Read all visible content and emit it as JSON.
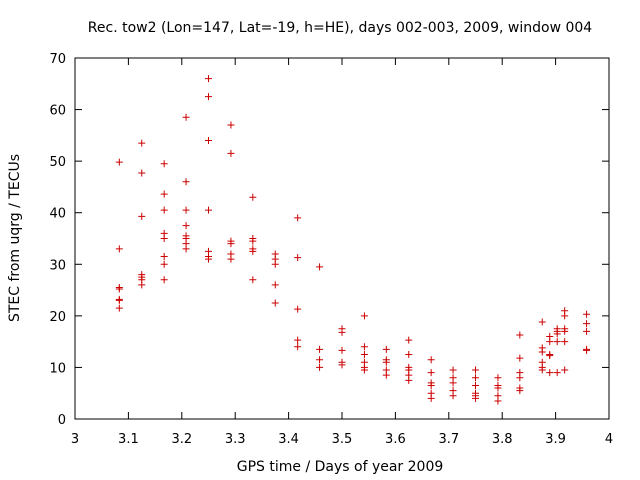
{
  "chart_data": {
    "type": "scatter",
    "title": "Rec. tow2 (Lon=147, Lat=-19, h=HE), days 002-003, 2009, window 004",
    "xlabel": "GPS time / Days of year 2009",
    "ylabel": "STEC from uqrg / TECUs",
    "xlim": [
      3,
      4
    ],
    "ylim": [
      0,
      70
    ],
    "xticks": [
      "3",
      "3.1",
      "3.2",
      "3.3",
      "3.4",
      "3.5",
      "3.6",
      "3.7",
      "3.8",
      "3.9",
      "4"
    ],
    "yticks": [
      "0",
      "10",
      "20",
      "30",
      "40",
      "50",
      "60",
      "70"
    ],
    "grid": false,
    "legend": "none",
    "marker": "+",
    "color": "#cc0000",
    "series": [
      {
        "name": "STEC",
        "points": [
          [
            3.083,
            49.8
          ],
          [
            3.083,
            33.0
          ],
          [
            3.083,
            25.5
          ],
          [
            3.083,
            25.2
          ],
          [
            3.083,
            23.2
          ],
          [
            3.083,
            23.0
          ],
          [
            3.083,
            21.5
          ],
          [
            3.125,
            53.5
          ],
          [
            3.125,
            47.7
          ],
          [
            3.125,
            39.3
          ],
          [
            3.125,
            28.0
          ],
          [
            3.125,
            27.5
          ],
          [
            3.125,
            27.0
          ],
          [
            3.125,
            26.0
          ],
          [
            3.167,
            49.5
          ],
          [
            3.167,
            43.6
          ],
          [
            3.167,
            40.5
          ],
          [
            3.167,
            36.0
          ],
          [
            3.167,
            35.0
          ],
          [
            3.167,
            31.5
          ],
          [
            3.167,
            30.0
          ],
          [
            3.167,
            27.0
          ],
          [
            3.208,
            58.5
          ],
          [
            3.208,
            46.0
          ],
          [
            3.208,
            40.5
          ],
          [
            3.208,
            37.5
          ],
          [
            3.208,
            35.5
          ],
          [
            3.208,
            35.0
          ],
          [
            3.208,
            34.0
          ],
          [
            3.208,
            33.0
          ],
          [
            3.25,
            66.0
          ],
          [
            3.25,
            62.5
          ],
          [
            3.25,
            54.0
          ],
          [
            3.25,
            40.5
          ],
          [
            3.25,
            32.5
          ],
          [
            3.25,
            31.5
          ],
          [
            3.25,
            31.0
          ],
          [
            3.292,
            57.0
          ],
          [
            3.292,
            51.5
          ],
          [
            3.292,
            34.5
          ],
          [
            3.292,
            34.0
          ],
          [
            3.292,
            32.0
          ],
          [
            3.292,
            31.0
          ],
          [
            3.333,
            43.0
          ],
          [
            3.333,
            35.0
          ],
          [
            3.333,
            34.5
          ],
          [
            3.333,
            33.0
          ],
          [
            3.333,
            32.5
          ],
          [
            3.333,
            27.0
          ],
          [
            3.375,
            32.0
          ],
          [
            3.375,
            31.0
          ],
          [
            3.375,
            30.0
          ],
          [
            3.375,
            26.0
          ],
          [
            3.375,
            22.5
          ],
          [
            3.417,
            39.0
          ],
          [
            3.417,
            31.3
          ],
          [
            3.417,
            21.3
          ],
          [
            3.417,
            15.3
          ],
          [
            3.417,
            14.0
          ],
          [
            3.458,
            29.5
          ],
          [
            3.458,
            13.5
          ],
          [
            3.458,
            11.5
          ],
          [
            3.458,
            10.0
          ],
          [
            3.5,
            17.5
          ],
          [
            3.5,
            16.8
          ],
          [
            3.5,
            13.3
          ],
          [
            3.5,
            11.0
          ],
          [
            3.5,
            10.5
          ],
          [
            3.542,
            20.0
          ],
          [
            3.542,
            14.0
          ],
          [
            3.542,
            12.5
          ],
          [
            3.542,
            11.0
          ],
          [
            3.542,
            10.0
          ],
          [
            3.542,
            9.5
          ],
          [
            3.583,
            13.5
          ],
          [
            3.583,
            11.5
          ],
          [
            3.583,
            11.0
          ],
          [
            3.583,
            9.5
          ],
          [
            3.583,
            8.5
          ],
          [
            3.625,
            15.3
          ],
          [
            3.625,
            12.5
          ],
          [
            3.625,
            10.0
          ],
          [
            3.625,
            9.5
          ],
          [
            3.625,
            8.5
          ],
          [
            3.625,
            7.5
          ],
          [
            3.667,
            11.5
          ],
          [
            3.667,
            9.0
          ],
          [
            3.667,
            7.0
          ],
          [
            3.667,
            6.5
          ],
          [
            3.667,
            5.0
          ],
          [
            3.667,
            4.0
          ],
          [
            3.708,
            9.5
          ],
          [
            3.708,
            8.0
          ],
          [
            3.708,
            7.0
          ],
          [
            3.708,
            5.5
          ],
          [
            3.708,
            4.5
          ],
          [
            3.75,
            9.5
          ],
          [
            3.75,
            8.0
          ],
          [
            3.75,
            6.5
          ],
          [
            3.75,
            5.0
          ],
          [
            3.75,
            4.5
          ],
          [
            3.75,
            4.0
          ],
          [
            3.792,
            8.0
          ],
          [
            3.792,
            6.5
          ],
          [
            3.792,
            6.0
          ],
          [
            3.792,
            4.5
          ],
          [
            3.792,
            3.5
          ],
          [
            3.833,
            16.3
          ],
          [
            3.833,
            11.8
          ],
          [
            3.833,
            9.0
          ],
          [
            3.833,
            8.0
          ],
          [
            3.833,
            6.0
          ],
          [
            3.833,
            5.5
          ],
          [
            3.875,
            18.8
          ],
          [
            3.875,
            13.8
          ],
          [
            3.875,
            13.0
          ],
          [
            3.875,
            11.0
          ],
          [
            3.875,
            10.0
          ],
          [
            3.875,
            9.5
          ],
          [
            3.889,
            16.0
          ],
          [
            3.889,
            15.0
          ],
          [
            3.889,
            12.5
          ],
          [
            3.889,
            12.3
          ],
          [
            3.889,
            9.0
          ],
          [
            3.903,
            17.5
          ],
          [
            3.903,
            17.0
          ],
          [
            3.903,
            16.5
          ],
          [
            3.903,
            15.0
          ],
          [
            3.903,
            9.0
          ],
          [
            3.917,
            21.0
          ],
          [
            3.917,
            20.0
          ],
          [
            3.917,
            17.5
          ],
          [
            3.917,
            17.0
          ],
          [
            3.917,
            15.0
          ],
          [
            3.917,
            9.5
          ],
          [
            3.958,
            20.3
          ],
          [
            3.958,
            18.5
          ],
          [
            3.958,
            17.0
          ],
          [
            3.958,
            13.5
          ],
          [
            3.958,
            13.3
          ]
        ]
      }
    ]
  }
}
